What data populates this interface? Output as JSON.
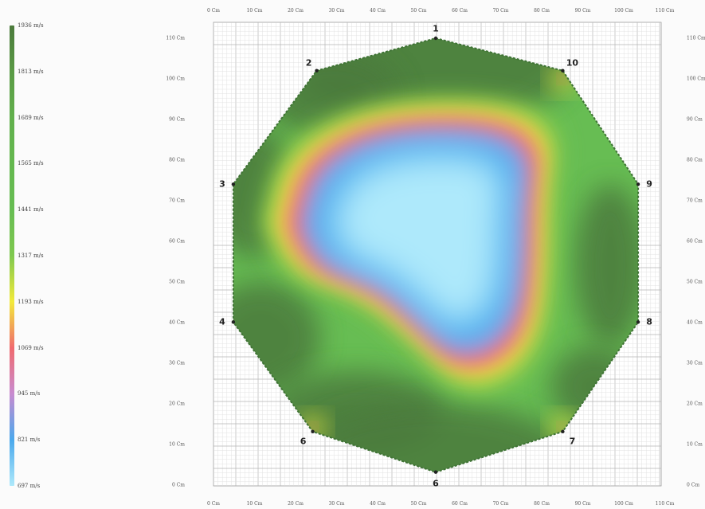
{
  "chart_data": {
    "type": "heatmap",
    "title": "",
    "legend": {
      "labels": [
        "1936 m/s",
        "1813 m/s",
        "1689 m/s",
        "1565 m/s",
        "1441 m/s",
        "1317 m/s",
        "1193 m/s",
        "1069 m/s",
        "945 m/s",
        "821 m/s",
        "697 m/s"
      ],
      "values": [
        1936,
        1813,
        1689,
        1565,
        1441,
        1317,
        1193,
        1069,
        945,
        821,
        697
      ],
      "colors": [
        "#4b7a3c",
        "#5a9a45",
        "#62b04d",
        "#64b84f",
        "#67bd53",
        "#7fc84f",
        "#f2ea3a",
        "#f06a6e",
        "#c88bd0",
        "#4aa8ec",
        "#aee9fb"
      ]
    },
    "x_ticks_top": [
      "0 Cm",
      "10 Cm",
      "20 Cm",
      "30 Cm",
      "40 Cm",
      "50 Cm",
      "60 Cm",
      "70 Cm",
      "80 Cm",
      "90 Cm",
      "100 Cm",
      "110 Cm"
    ],
    "x_ticks_bottom": [
      "0 Cm",
      "10 Cm",
      "20 Cm",
      "30 Cm",
      "40 Cm",
      "50 Cm",
      "60 Cm",
      "70 Cm",
      "80 Cm",
      "90 Cm",
      "100 Cm",
      "110 Cm"
    ],
    "y_ticks_left": [
      "110 Cm",
      "100 Cm",
      "90 Cm",
      "80 Cm",
      "70 Cm",
      "60 Cm",
      "50 Cm",
      "40 Cm",
      "30 Cm",
      "20 Cm",
      "10 Cm",
      "0 Cm"
    ],
    "y_ticks_right": [
      "110 Cm",
      "100 Cm",
      "90 Cm",
      "80 Cm",
      "70 Cm",
      "60 Cm",
      "50 Cm",
      "40 Cm",
      "30 Cm",
      "20 Cm",
      "10 Cm",
      "0 Cm"
    ],
    "xlim": [
      0,
      110
    ],
    "ylim": [
      0,
      110
    ],
    "grid": true,
    "sensors": [
      {
        "label": "1",
        "x": 56,
        "y": 110
      },
      {
        "label": "2",
        "x": 26,
        "y": 102
      },
      {
        "label": "3",
        "x": 5,
        "y": 74
      },
      {
        "label": "4",
        "x": 5,
        "y": 40
      },
      {
        "label": "6",
        "x": 25,
        "y": 13
      },
      {
        "label": "6",
        "x": 56,
        "y": 3
      },
      {
        "label": "7",
        "x": 88,
        "y": 13
      },
      {
        "label": "8",
        "x": 107,
        "y": 40
      },
      {
        "label": "9",
        "x": 107,
        "y": 74
      },
      {
        "label": "10",
        "x": 88,
        "y": 102
      }
    ]
  }
}
